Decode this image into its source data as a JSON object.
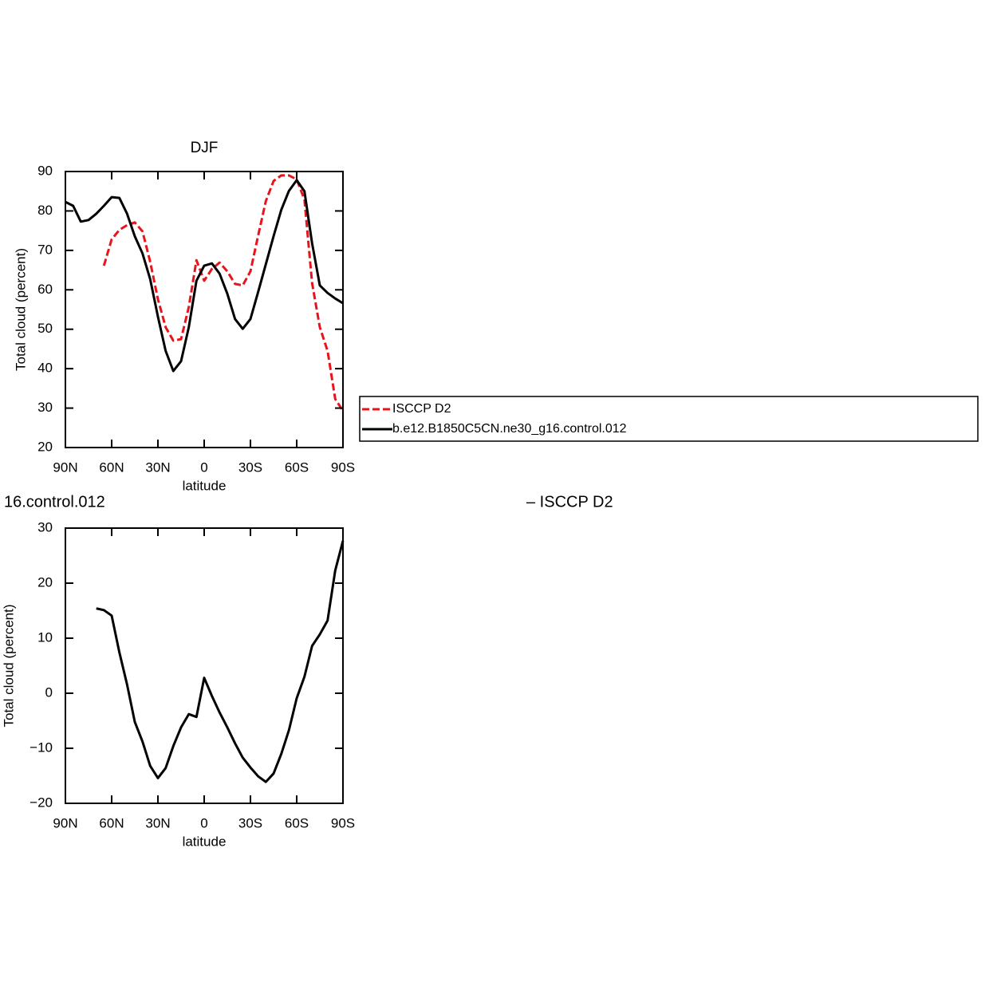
{
  "chart_data": [
    {
      "type": "line",
      "title": "DJF",
      "xlabel": "latitude",
      "ylabel": "Total cloud (percent)",
      "x": [
        90,
        85,
        80,
        75,
        70,
        65,
        60,
        55,
        50,
        45,
        40,
        35,
        30,
        25,
        20,
        15,
        10,
        5,
        0,
        -5,
        -10,
        -15,
        -20,
        -25,
        -30,
        -35,
        -40,
        -45,
        -50,
        -55,
        -60,
        -65,
        -70,
        -75,
        -80,
        -85,
        -90
      ],
      "xlim": [
        90,
        -90
      ],
      "xticks": [
        {
          "value": 90,
          "label": "90N"
        },
        {
          "value": 60,
          "label": "60N"
        },
        {
          "value": 30,
          "label": "30N"
        },
        0,
        {
          "value": -30,
          "label": "30S"
        },
        {
          "value": -60,
          "label": "60S"
        },
        {
          "value": -90,
          "label": "90S"
        }
      ],
      "ylim": [
        20,
        90
      ],
      "yticks": [
        20,
        30,
        40,
        50,
        60,
        70,
        80,
        90
      ],
      "legend": true,
      "series": [
        {
          "name": "ISCCP D2",
          "color": "#e8141c",
          "line_style": "dashed",
          "values": [
            null,
            null,
            null,
            null,
            null,
            66.1,
            72.8,
            75.2,
            76.4,
            77.1,
            74.8,
            67.1,
            57.6,
            50.5,
            47.1,
            47.5,
            55.6,
            67.5,
            62.3,
            65.3,
            66.9,
            64.7,
            61.5,
            61.1,
            64.7,
            73.8,
            82.5,
            87.6,
            89,
            89,
            88,
            82.9,
            61.7,
            50.5,
            44.5,
            32.3,
            29.3
          ]
        },
        {
          "name": "b.e12.B1850C5CN.ne30_g16.control.012",
          "color": "#000000",
          "line_style": "solid",
          "values": [
            82.3,
            81.3,
            77.3,
            77.7,
            79.3,
            81.3,
            83.5,
            83.3,
            79.3,
            73.6,
            69.2,
            62.7,
            53.2,
            44.5,
            39.4,
            41.9,
            50.5,
            62.3,
            66.1,
            66.7,
            64.1,
            59,
            52.6,
            50.1,
            52.6,
            59.5,
            66.5,
            73.6,
            80.3,
            85.1,
            87.8,
            85,
            71.8,
            61.1,
            59.2,
            57.8,
            56.6
          ]
        }
      ]
    },
    {
      "type": "line",
      "title_left": "16.control.012",
      "title_right": "– ISCCP D2",
      "xlabel": "latitude",
      "ylabel": "Total cloud (percent)",
      "x": [
        90,
        85,
        80,
        75,
        70,
        65,
        60,
        55,
        50,
        45,
        40,
        35,
        30,
        25,
        20,
        15,
        10,
        5,
        0,
        -5,
        -10,
        -15,
        -20,
        -25,
        -30,
        -35,
        -40,
        -45,
        -50,
        -55,
        -60,
        -65,
        -70,
        -75,
        -80,
        -85,
        -90
      ],
      "xlim": [
        90,
        -90
      ],
      "xticks": [
        {
          "value": 90,
          "label": "90N"
        },
        {
          "value": 60,
          "label": "60N"
        },
        {
          "value": 30,
          "label": "30N"
        },
        0,
        {
          "value": -30,
          "label": "30S"
        },
        {
          "value": -60,
          "label": "60S"
        },
        {
          "value": -90,
          "label": "90S"
        }
      ],
      "ylim": [
        -20,
        30
      ],
      "yticks": [
        {
          "value": -20,
          "label": "−20"
        },
        {
          "value": -10,
          "label": "−10"
        },
        0,
        10,
        20,
        30
      ],
      "series": [
        {
          "color": "#000000",
          "line_style": "solid",
          "values": [
            null,
            null,
            null,
            null,
            15.4,
            15.1,
            14.1,
            7.4,
            1.6,
            -5.2,
            -8.8,
            -13.2,
            -15.4,
            -13.6,
            -9.6,
            -6.2,
            -3.8,
            -4.3,
            2.8,
            -0.5,
            -3.5,
            -6.2,
            -9.1,
            -11.7,
            -13.5,
            -15.1,
            -16.1,
            -14.6,
            -11,
            -6.7,
            -0.9,
            3,
            8.6,
            10.7,
            13.2,
            22.3,
            27.7
          ]
        }
      ]
    }
  ]
}
